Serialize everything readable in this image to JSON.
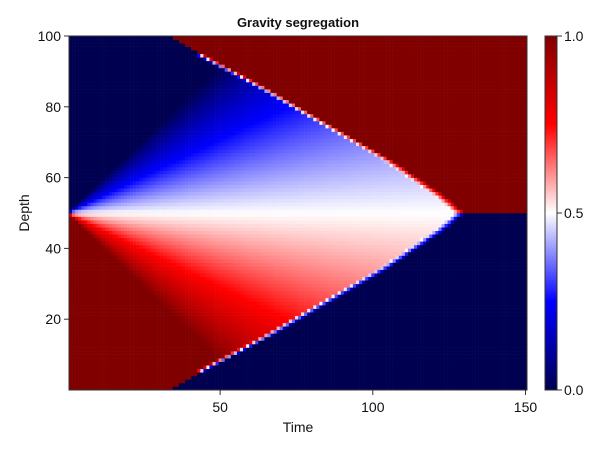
{
  "chart_data": {
    "type": "heatmap",
    "title": "Gravity segregation",
    "xlabel": "Time",
    "ylabel": "Depth",
    "xlim": [
      0.5,
      150.5
    ],
    "ylim": [
      0.5,
      100.5
    ],
    "xticks": [
      50,
      100,
      150
    ],
    "yticks": [
      20,
      40,
      60,
      80,
      100
    ],
    "grid": false,
    "colormap": [
      "#000050",
      "#0000ff",
      "#ffffff",
      "#ff0000",
      "#800000"
    ],
    "colorbar": {
      "range": [
        0,
        1
      ],
      "ticks": [
        "0.0",
        "0.5",
        "1.0"
      ],
      "placement": "right"
    },
    "sample_times": [
      10,
      30,
      50,
      70,
      90,
      110,
      130,
      150
    ],
    "sample_depths": [
      95,
      85,
      75,
      65,
      55,
      45,
      35,
      25,
      15,
      5
    ],
    "sample_values": [
      [
        0,
        0,
        1,
        1,
        1,
        1,
        1,
        1
      ],
      [
        0,
        0,
        0.08,
        1,
        1,
        1,
        1,
        1
      ],
      [
        0,
        0,
        0.2,
        0.29,
        1,
        1,
        1,
        1
      ],
      [
        0,
        0.2,
        0.32,
        0.37,
        0.4,
        1,
        1,
        1
      ],
      [
        0.2,
        0.4,
        0.44,
        0.46,
        0.47,
        0.47,
        1,
        1
      ],
      [
        0.8,
        0.6,
        0.56,
        0.54,
        0.53,
        0.53,
        0,
        0
      ],
      [
        1,
        0.8,
        0.68,
        0.63,
        0.6,
        0,
        0,
        0
      ],
      [
        1,
        1,
        0.8,
        0.71,
        0,
        0,
        0,
        0
      ],
      [
        1,
        1,
        0.92,
        0,
        0,
        0,
        0,
        0
      ],
      [
        1,
        1,
        0,
        0,
        0,
        0,
        0,
        0
      ]
    ],
    "front": {
      "description_points_time": [
        33,
        44,
        66,
        86,
        106,
        123,
        130
      ],
      "description_points_depth_upper": [
        100,
        95,
        85,
        75,
        65,
        55,
        50
      ],
      "description_points_depth_lower": [
        1,
        5,
        15,
        25,
        35,
        45,
        50
      ]
    }
  }
}
